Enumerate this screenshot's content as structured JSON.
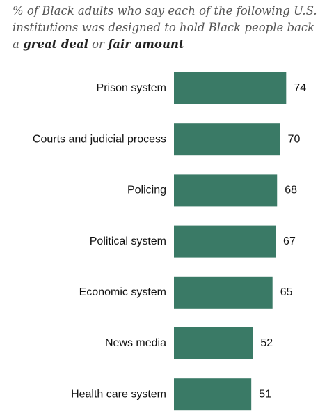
{
  "header": {
    "subtitle_part1": "% of Black adults who say each of the following U.S. institutions was designed to hold Black people back a ",
    "subtitle_bold1": "great deal",
    "subtitle_mid": " or ",
    "subtitle_bold2": "fair amount"
  },
  "chart_data": {
    "type": "bar",
    "orientation": "horizontal",
    "title": "% of Black adults who say each of the following U.S. institutions was designed to hold Black people back a great deal or fair amount",
    "categories": [
      "Prison system",
      "Courts and judicial process",
      "Policing",
      "Political system",
      "Economic system",
      "News media",
      "Health care system"
    ],
    "values": [
      74,
      70,
      68,
      67,
      65,
      52,
      51
    ],
    "xlim": [
      0,
      100
    ],
    "grid": false,
    "bar_color": "#3a7a66"
  }
}
